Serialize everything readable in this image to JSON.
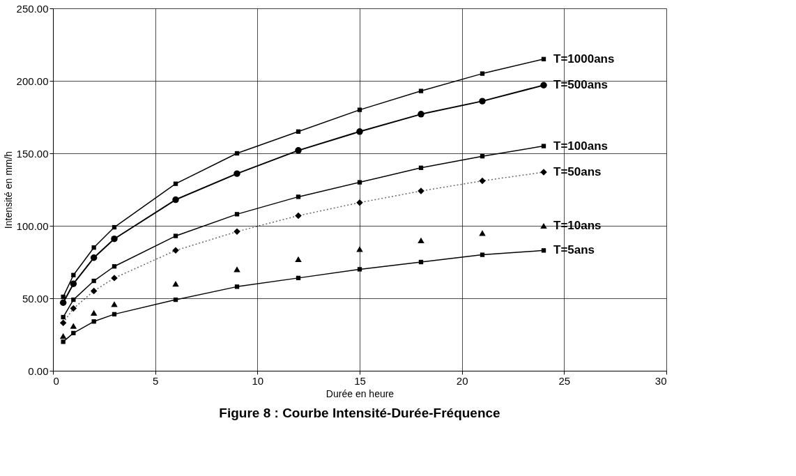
{
  "chart_data": {
    "type": "line",
    "title": "Figure 8  : Courbe Intensité-Durée-Fréquence",
    "xlabel": "Durée en heure",
    "ylabel": "Intensité en mm/h",
    "x": [
      0.5,
      1,
      2,
      3,
      6,
      9,
      12,
      15,
      18,
      21,
      24
    ],
    "series": [
      {
        "name": "T=1000ans",
        "color": "#000000",
        "marker": "square",
        "values": [
          51,
          66,
          85,
          99,
          129,
          150,
          165,
          180,
          193,
          205,
          215
        ]
      },
      {
        "name": "T=500ans",
        "color": "#000000",
        "marker": "circle",
        "values": [
          47,
          60,
          78,
          91,
          118,
          136,
          152,
          165,
          177,
          186,
          197
        ]
      },
      {
        "name": "T=100ans",
        "color": "#000000",
        "marker": "square",
        "values": [
          37,
          49,
          62,
          72,
          93,
          108,
          120,
          130,
          140,
          148,
          155
        ]
      },
      {
        "name": "T=50ans",
        "color": "#000000",
        "marker": "diamond",
        "line_style": "dotted",
        "values": [
          33,
          43,
          55,
          64,
          83,
          96,
          107,
          116,
          124,
          131,
          137
        ]
      },
      {
        "name": "T=10ans",
        "type": "scatter",
        "color": "#000000",
        "marker": "triangle",
        "values": [
          24,
          31,
          40,
          46,
          60,
          70,
          77,
          84,
          90,
          95,
          100
        ]
      },
      {
        "name": "T=5ans",
        "color": "#000000",
        "marker": "square",
        "values": [
          20,
          26,
          34,
          39,
          49,
          58,
          64,
          70,
          75,
          80,
          83
        ]
      }
    ],
    "xlim": [
      0,
      30
    ],
    "xticks": [
      0,
      5,
      10,
      15,
      20,
      25,
      30
    ],
    "ylim": [
      0,
      250
    ],
    "yticks": [
      {
        "value": 0,
        "label": "0.00"
      },
      {
        "value": 50,
        "label": "50.00"
      },
      {
        "value": 100,
        "label": "100.00"
      },
      {
        "value": 150,
        "label": "150.00"
      },
      {
        "value": 200,
        "label": "200.00"
      },
      {
        "value": 250,
        "label": "250.00"
      }
    ],
    "grid": true,
    "legend": false
  }
}
